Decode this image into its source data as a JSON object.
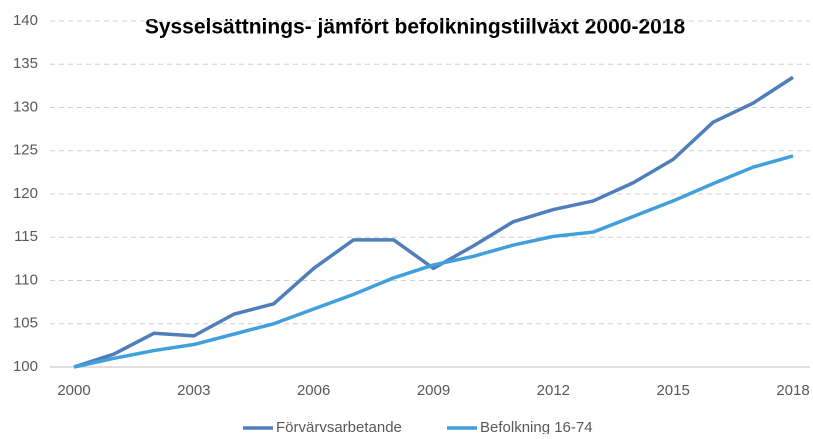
{
  "chart_data": {
    "type": "line",
    "title": "Sysselsättnings- jämfört befolkningstillväxt 2000-2018",
    "x": [
      2000,
      2001,
      2002,
      2003,
      2004,
      2005,
      2006,
      2007,
      2008,
      2009,
      2010,
      2011,
      2012,
      2013,
      2014,
      2015,
      2016,
      2017,
      2018
    ],
    "series": [
      {
        "name": "Förvärvsarbetande",
        "color": "#4f7ebb",
        "values": [
          100,
          101.5,
          103.9,
          103.6,
          106.1,
          107.3,
          111.4,
          114.7,
          114.7,
          111.4,
          114.0,
          116.8,
          118.2,
          119.2,
          121.3,
          124.0,
          128.3,
          130.5,
          133.5
        ]
      },
      {
        "name": "Befolkning 16-74",
        "color": "#41a0dc",
        "values": [
          100,
          101.0,
          101.9,
          102.6,
          103.8,
          105.0,
          106.7,
          108.4,
          110.3,
          111.8,
          112.8,
          114.1,
          115.1,
          115.6,
          117.4,
          119.2,
          121.2,
          123.1,
          124.4
        ]
      }
    ],
    "xlim": [
      2000,
      2018
    ],
    "xticks": [
      2000,
      2003,
      2006,
      2009,
      2012,
      2015,
      2018
    ],
    "ylim": [
      100,
      140
    ],
    "yticks": [
      100,
      105,
      110,
      115,
      120,
      125,
      130,
      135,
      140
    ],
    "grid": true,
    "legend": "bottom"
  }
}
